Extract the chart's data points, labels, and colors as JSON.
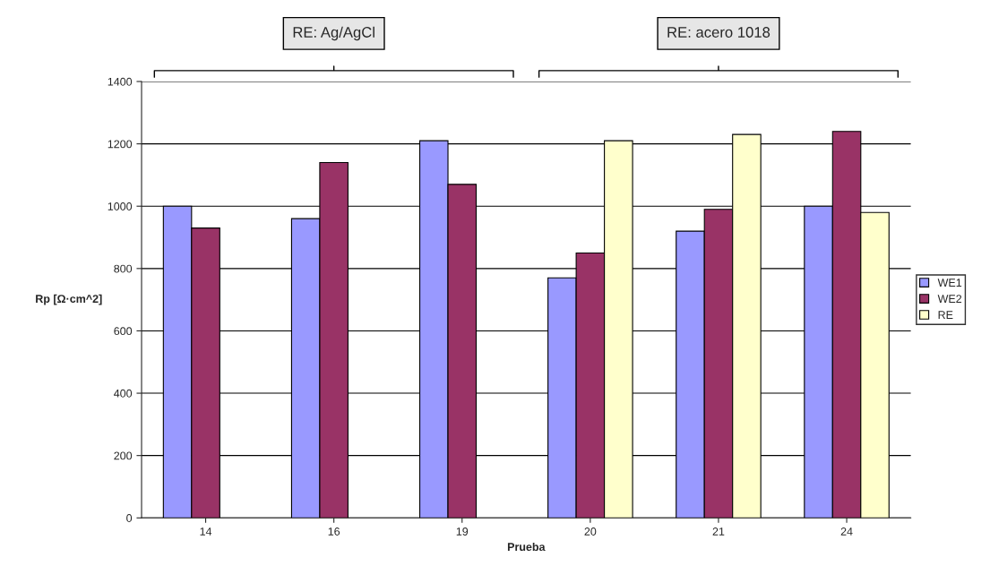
{
  "chart_data": {
    "type": "bar",
    "xlabel": "Prueba",
    "ylabel": "Rp [Ω·cm^2]",
    "categories": [
      "14",
      "16",
      "19",
      "20",
      "21",
      "24"
    ],
    "series": [
      {
        "name": "WE1",
        "color": "#9999ff",
        "values": [
          1000,
          960,
          1210,
          770,
          920,
          1000
        ]
      },
      {
        "name": "WE2",
        "color": "#993366",
        "values": [
          930,
          1140,
          1070,
          850,
          990,
          1240
        ]
      },
      {
        "name": "RE",
        "color": "#ffffcc",
        "values": [
          null,
          null,
          null,
          1210,
          1230,
          980
        ]
      }
    ],
    "ylim": [
      0,
      1400
    ],
    "yticks": [
      0,
      200,
      400,
      600,
      800,
      1000,
      1200,
      1400
    ],
    "grid": "y",
    "legend": "right",
    "annotations": [
      "RE: Ag/AgCl",
      "RE: acero 1018"
    ]
  }
}
